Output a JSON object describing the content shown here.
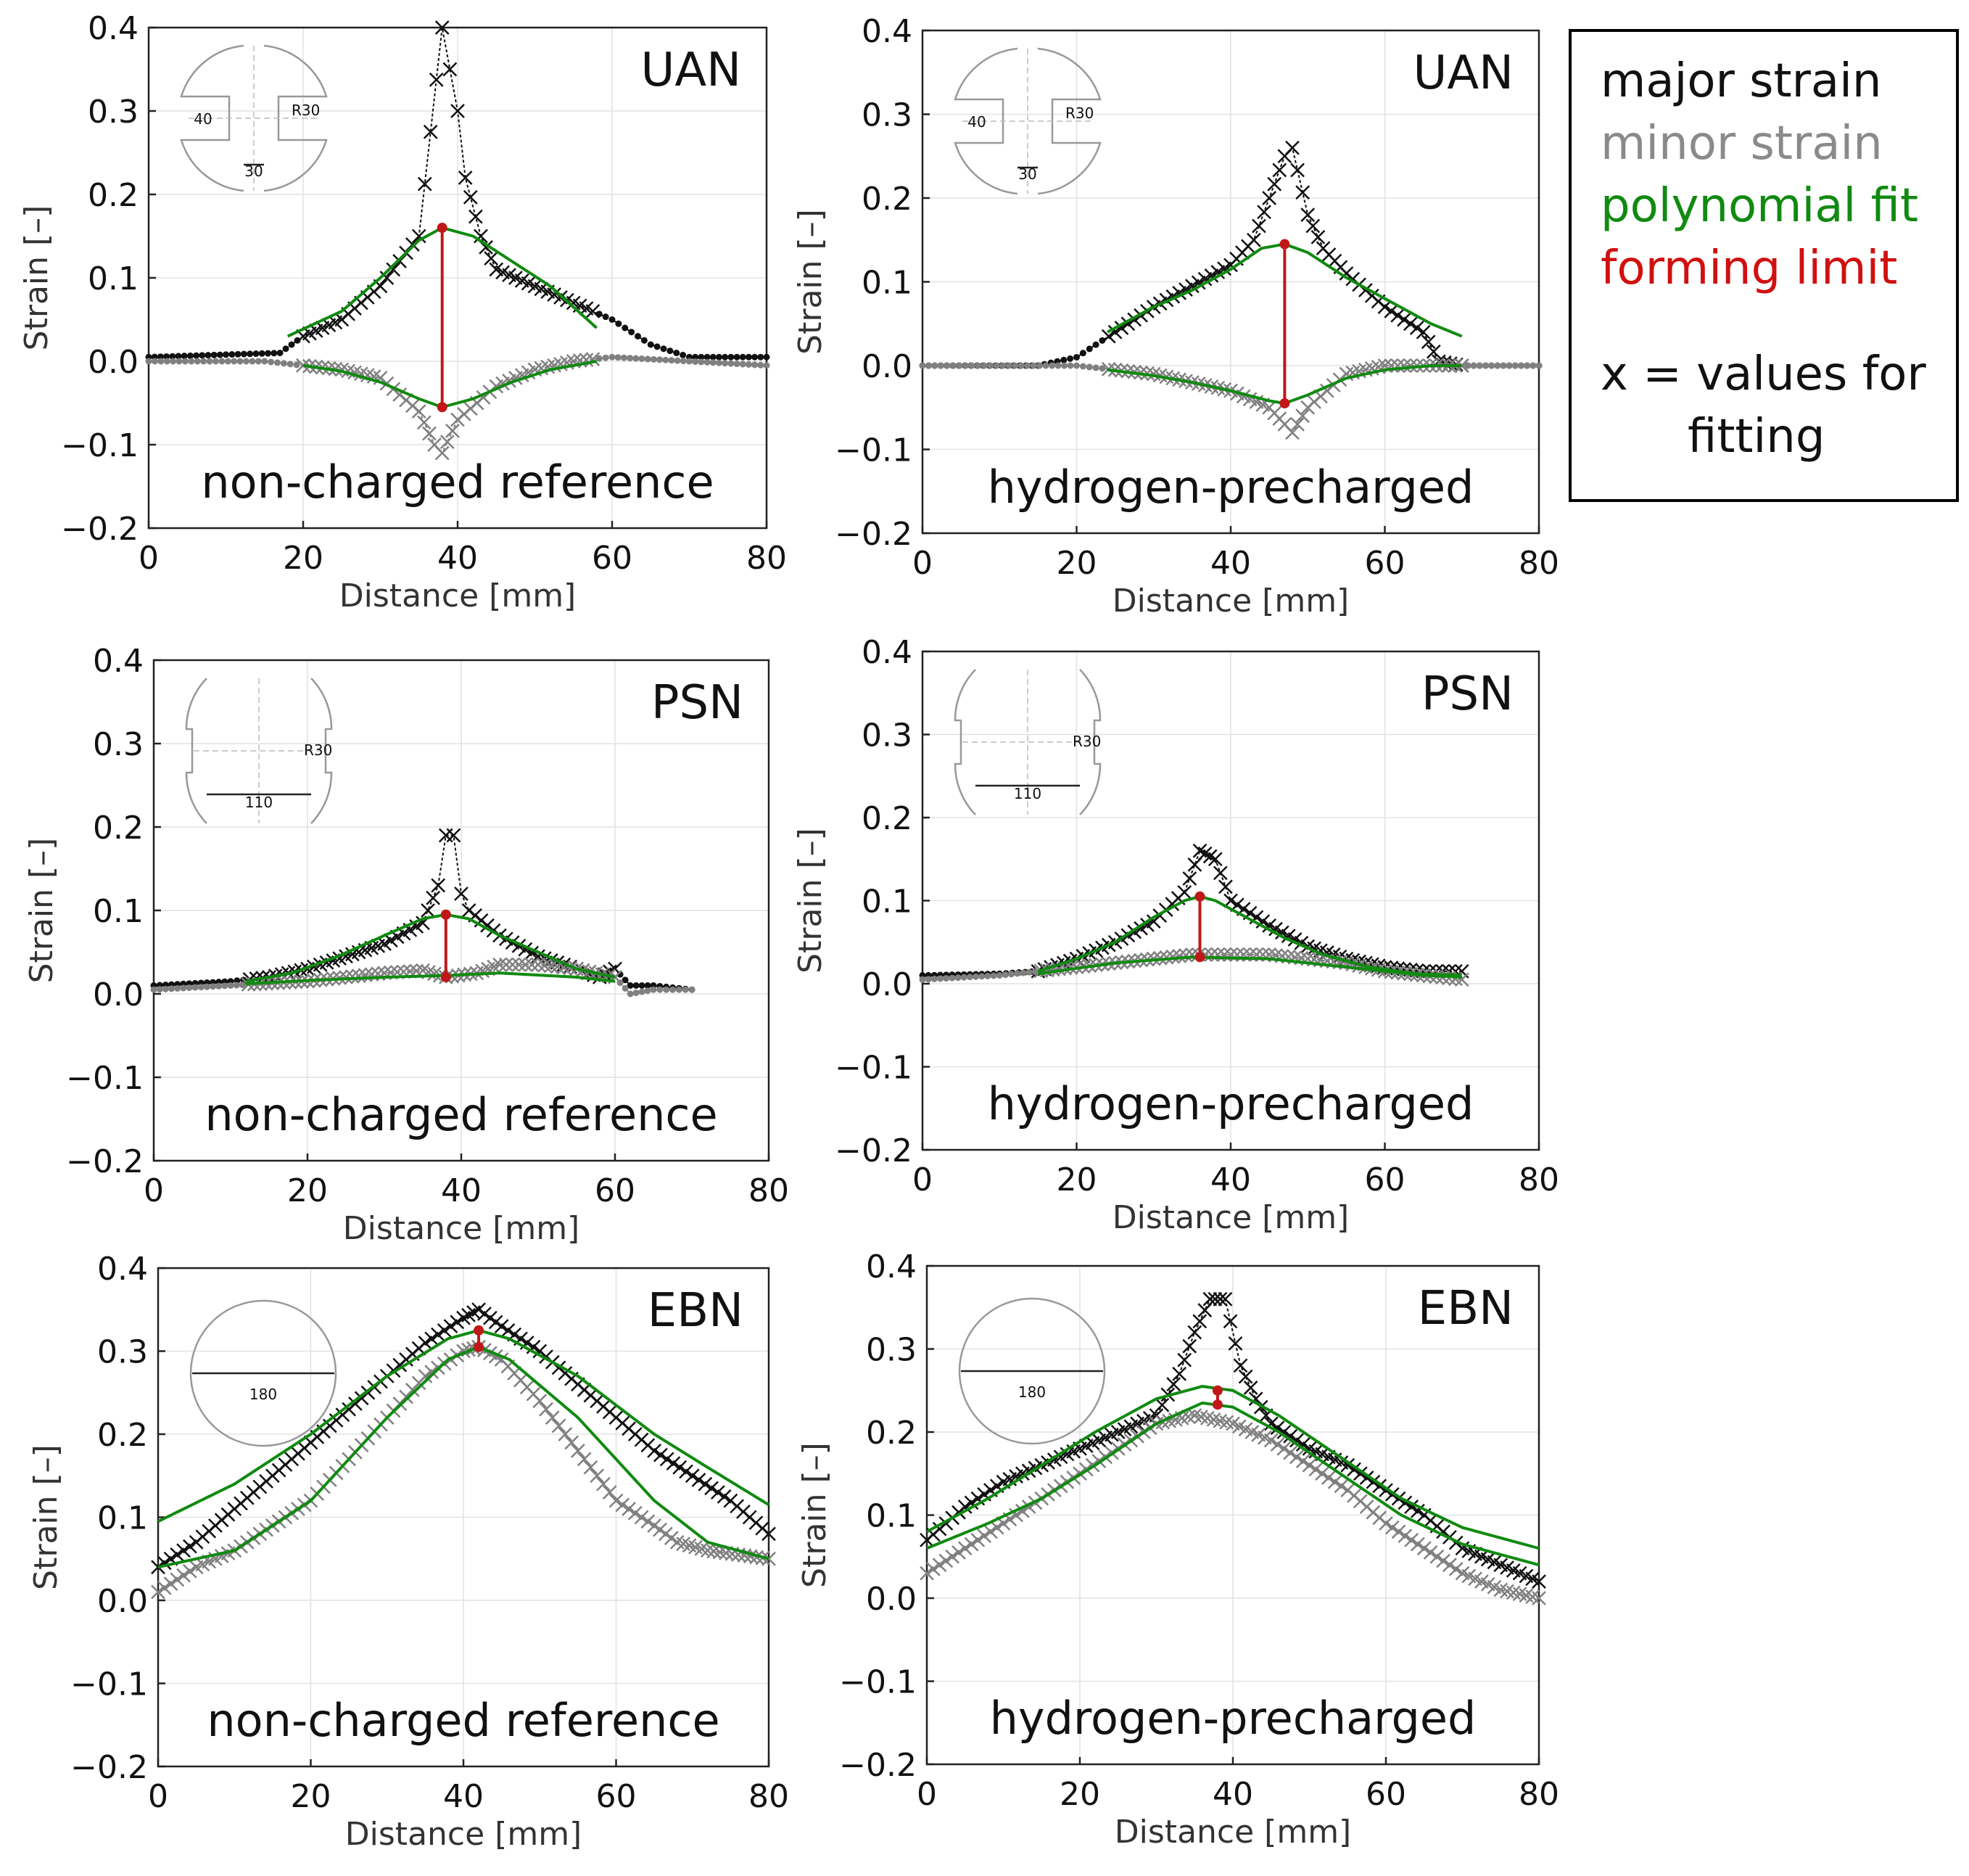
{
  "legend": {
    "major": "major strain",
    "minor": "minor strain",
    "fit": "polynomial fit",
    "limit": "forming limit",
    "note1": "x = values for",
    "note2": "fitting"
  },
  "colors": {
    "major": "#111111",
    "minor": "#808080",
    "fit": "#108a10",
    "limit": "#c01818",
    "grid": "#e2e2e2"
  },
  "chart_data": [
    {
      "type": "line",
      "test": "UAN",
      "condition": "non-charged reference",
      "xlabel": "Distance [mm]",
      "ylabel": "Strain [–]",
      "xlim": [
        0,
        80
      ],
      "ylim": [
        -0.2,
        0.4
      ],
      "xticks": [
        "0",
        "20",
        "40",
        "60",
        "80"
      ],
      "yticks": [
        "0.4",
        "0.3",
        "0.2",
        "0.1",
        "0.0",
        "−0.1",
        "−0.2"
      ],
      "specimen": {
        "shape": "notched",
        "labels": [
          "40",
          "R30",
          "30"
        ]
      },
      "major_strain": {
        "x": [
          0,
          10,
          17,
          20,
          25,
          30,
          35,
          38,
          39,
          40,
          41,
          43,
          45,
          50,
          55,
          60,
          65,
          70,
          80
        ],
        "y": [
          0.005,
          0.008,
          0.01,
          0.03,
          0.05,
          0.09,
          0.15,
          0.4,
          0.35,
          0.3,
          0.22,
          0.15,
          0.11,
          0.09,
          0.07,
          0.05,
          0.02,
          0.005,
          0.005
        ]
      },
      "minor_strain": {
        "x": [
          0,
          15,
          20,
          25,
          30,
          35,
          37,
          38,
          40,
          45,
          50,
          55,
          60,
          70,
          80
        ],
        "y": [
          0.0,
          0.0,
          -0.005,
          -0.01,
          -0.02,
          -0.06,
          -0.1,
          -0.11,
          -0.07,
          -0.03,
          -0.01,
          0.0,
          0.005,
          0.0,
          -0.005
        ]
      },
      "major_fit": {
        "x": [
          18,
          25,
          30,
          35,
          38,
          42,
          47,
          52,
          58
        ],
        "y": [
          0.03,
          0.06,
          0.1,
          0.145,
          0.16,
          0.15,
          0.12,
          0.09,
          0.04
        ]
      },
      "minor_fit": {
        "x": [
          20,
          25,
          30,
          35,
          38,
          42,
          47,
          52,
          58
        ],
        "y": [
          -0.005,
          -0.012,
          -0.025,
          -0.045,
          -0.055,
          -0.045,
          -0.025,
          -0.01,
          0.0
        ]
      },
      "forming_limit": {
        "x": 38,
        "major": 0.16,
        "minor": -0.055
      },
      "fit_range": [
        20,
        58
      ]
    },
    {
      "type": "line",
      "test": "UAN",
      "condition": "hydrogen-precharged",
      "xlabel": "Distance [mm]",
      "ylabel": "Strain [–]",
      "xlim": [
        0,
        80
      ],
      "ylim": [
        -0.2,
        0.4
      ],
      "xticks": [
        "0",
        "20",
        "40",
        "60",
        "80"
      ],
      "yticks": [
        "0.4",
        "0.3",
        "0.2",
        "0.1",
        "0.0",
        "−0.1",
        "−0.2"
      ],
      "specimen": {
        "shape": "notched",
        "labels": [
          "40",
          "R30",
          "30"
        ]
      },
      "major_strain": {
        "x": [
          0,
          15,
          20,
          25,
          30,
          35,
          40,
          43,
          45,
          47,
          48,
          50,
          52,
          55,
          60,
          65,
          67,
          70,
          80
        ],
        "y": [
          0.0,
          0.0,
          0.01,
          0.04,
          0.07,
          0.095,
          0.12,
          0.15,
          0.2,
          0.25,
          0.26,
          0.18,
          0.14,
          0.11,
          0.07,
          0.04,
          0.005,
          0.0,
          0.0
        ]
      },
      "minor_strain": {
        "x": [
          0,
          20,
          25,
          30,
          35,
          40,
          45,
          47,
          48,
          50,
          55,
          60,
          65,
          70,
          80
        ],
        "y": [
          0.0,
          0.0,
          -0.005,
          -0.01,
          -0.02,
          -0.03,
          -0.05,
          -0.07,
          -0.08,
          -0.05,
          -0.01,
          0.0,
          0.0,
          0.0,
          0.0
        ]
      },
      "major_fit": {
        "x": [
          24,
          30,
          35,
          40,
          44,
          47,
          50,
          55,
          60,
          66,
          70
        ],
        "y": [
          0.04,
          0.07,
          0.09,
          0.115,
          0.14,
          0.145,
          0.135,
          0.105,
          0.08,
          0.05,
          0.035
        ]
      },
      "minor_fit": {
        "x": [
          24,
          30,
          35,
          40,
          45,
          47,
          50,
          55,
          60,
          66,
          70
        ],
        "y": [
          -0.005,
          -0.012,
          -0.02,
          -0.03,
          -0.042,
          -0.045,
          -0.035,
          -0.015,
          -0.005,
          0.0,
          0.0
        ]
      },
      "forming_limit": {
        "x": 47,
        "major": 0.145,
        "minor": -0.045
      },
      "fit_range": [
        24,
        70
      ]
    },
    {
      "type": "line",
      "test": "PSN",
      "condition": "non-charged reference",
      "xlabel": "Distance [mm]",
      "ylabel": "Strain [–]",
      "xlim": [
        0,
        80
      ],
      "ylim": [
        -0.2,
        0.4
      ],
      "xticks": [
        "0",
        "20",
        "40",
        "60",
        "80"
      ],
      "yticks": [
        "0.4",
        "0.3",
        "0.2",
        "0.1",
        "0.0",
        "−0.1",
        "−0.2"
      ],
      "specimen": {
        "shape": "notched",
        "labels": [
          "R30",
          "110"
        ]
      },
      "major_strain": {
        "x": [
          0,
          10,
          15,
          20,
          25,
          30,
          35,
          37,
          38,
          39,
          40,
          41,
          45,
          50,
          55,
          58,
          60,
          62,
          65,
          70
        ],
        "y": [
          0.01,
          0.015,
          0.02,
          0.03,
          0.045,
          0.06,
          0.085,
          0.13,
          0.19,
          0.19,
          0.12,
          0.1,
          0.07,
          0.045,
          0.03,
          0.02,
          0.03,
          0.01,
          0.01,
          0.005
        ]
      },
      "minor_strain": {
        "x": [
          0,
          10,
          20,
          25,
          30,
          35,
          38,
          42,
          45,
          50,
          55,
          60,
          62,
          65,
          70
        ],
        "y": [
          0.005,
          0.01,
          0.015,
          0.02,
          0.025,
          0.028,
          0.02,
          0.025,
          0.035,
          0.035,
          0.03,
          0.02,
          0.0,
          0.005,
          0.005
        ]
      },
      "major_fit": {
        "x": [
          12,
          18,
          24,
          30,
          35,
          38,
          41,
          45,
          50,
          55,
          60
        ],
        "y": [
          0.015,
          0.025,
          0.045,
          0.07,
          0.09,
          0.095,
          0.09,
          0.07,
          0.05,
          0.03,
          0.02
        ]
      },
      "minor_fit": {
        "x": [
          12,
          20,
          30,
          38,
          45,
          55,
          60
        ],
        "y": [
          0.012,
          0.016,
          0.02,
          0.022,
          0.025,
          0.02,
          0.015
        ]
      },
      "forming_limit": {
        "x": 38,
        "major": 0.095,
        "minor": 0.02
      },
      "fit_range": [
        12,
        60
      ]
    },
    {
      "type": "line",
      "test": "PSN",
      "condition": "hydrogen-precharged",
      "xlabel": "Distance [mm]",
      "ylabel": "Strain [–]",
      "xlim": [
        0,
        80
      ],
      "ylim": [
        -0.2,
        0.4
      ],
      "xticks": [
        "0",
        "20",
        "40",
        "60",
        "80"
      ],
      "yticks": [
        "0.4",
        "0.3",
        "0.2",
        "0.1",
        "0.0",
        "−0.1",
        "−0.2"
      ],
      "specimen": {
        "shape": "notched",
        "labels": [
          "R30",
          "110"
        ]
      },
      "major_strain": {
        "x": [
          0,
          10,
          15,
          20,
          25,
          30,
          34,
          36,
          38,
          40,
          45,
          50,
          55,
          60,
          65,
          70
        ],
        "y": [
          0.01,
          0.012,
          0.015,
          0.03,
          0.05,
          0.075,
          0.11,
          0.16,
          0.15,
          0.1,
          0.07,
          0.045,
          0.03,
          0.02,
          0.015,
          0.015
        ]
      },
      "minor_strain": {
        "x": [
          0,
          10,
          20,
          25,
          30,
          35,
          40,
          45,
          50,
          55,
          60,
          65,
          70
        ],
        "y": [
          0.005,
          0.01,
          0.02,
          0.025,
          0.03,
          0.035,
          0.035,
          0.035,
          0.03,
          0.025,
          0.015,
          0.01,
          0.005
        ]
      },
      "major_fit": {
        "x": [
          15,
          20,
          25,
          30,
          34,
          36,
          38,
          42,
          47,
          52,
          58,
          64,
          70
        ],
        "y": [
          0.015,
          0.03,
          0.05,
          0.08,
          0.1,
          0.105,
          0.1,
          0.08,
          0.055,
          0.035,
          0.02,
          0.012,
          0.01
        ]
      },
      "minor_fit": {
        "x": [
          15,
          25,
          35,
          45,
          55,
          65,
          70
        ],
        "y": [
          0.012,
          0.025,
          0.032,
          0.03,
          0.02,
          0.01,
          0.008
        ]
      },
      "forming_limit": {
        "x": 36,
        "major": 0.105,
        "minor": 0.032
      },
      "fit_range": [
        15,
        70
      ]
    },
    {
      "type": "line",
      "test": "EBN",
      "condition": "non-charged reference",
      "xlabel": "Distance [mm]",
      "ylabel": "Strain [–]",
      "xlim": [
        0,
        80
      ],
      "ylim": [
        -0.2,
        0.4
      ],
      "xticks": [
        "0",
        "20",
        "40",
        "60",
        "80"
      ],
      "yticks": [
        "0.4",
        "0.3",
        "0.2",
        "0.1",
        "0.0",
        "−0.1",
        "−0.2"
      ],
      "specimen": {
        "shape": "circle",
        "labels": [
          "180"
        ]
      },
      "major_strain": {
        "x": [
          0,
          5,
          10,
          15,
          20,
          25,
          30,
          35,
          40,
          42,
          45,
          50,
          55,
          60,
          65,
          70,
          75,
          80
        ],
        "y": [
          0.04,
          0.07,
          0.11,
          0.15,
          0.19,
          0.23,
          0.27,
          0.31,
          0.34,
          0.35,
          0.33,
          0.3,
          0.26,
          0.22,
          0.18,
          0.15,
          0.12,
          0.08
        ]
      },
      "minor_strain": {
        "x": [
          0,
          5,
          10,
          15,
          20,
          25,
          30,
          35,
          40,
          42,
          45,
          50,
          55,
          60,
          65,
          68,
          72,
          80
        ],
        "y": [
          0.01,
          0.04,
          0.06,
          0.09,
          0.12,
          0.17,
          0.22,
          0.27,
          0.3,
          0.305,
          0.29,
          0.24,
          0.18,
          0.12,
          0.09,
          0.07,
          0.06,
          0.05
        ]
      },
      "major_fit": {
        "x": [
          0,
          10,
          20,
          30,
          38,
          42,
          46,
          55,
          65,
          72,
          80
        ],
        "y": [
          0.095,
          0.14,
          0.2,
          0.27,
          0.315,
          0.325,
          0.315,
          0.27,
          0.2,
          0.16,
          0.115
        ]
      },
      "minor_fit": {
        "x": [
          0,
          10,
          20,
          30,
          38,
          42,
          46,
          55,
          65,
          72,
          80
        ],
        "y": [
          0.04,
          0.06,
          0.12,
          0.22,
          0.29,
          0.305,
          0.29,
          0.22,
          0.12,
          0.07,
          0.05
        ]
      },
      "forming_limit": {
        "x": 42,
        "major": 0.325,
        "minor": 0.305
      },
      "fit_range": [
        0,
        80
      ]
    },
    {
      "type": "line",
      "test": "EBN",
      "condition": "hydrogen-precharged",
      "xlabel": "Distance [mm]",
      "ylabel": "Strain [–]",
      "xlim": [
        0,
        80
      ],
      "ylim": [
        -0.2,
        0.4
      ],
      "xticks": [
        "0",
        "20",
        "40",
        "60",
        "80"
      ],
      "yticks": [
        "0.4",
        "0.3",
        "0.2",
        "0.1",
        "0.0",
        "−0.1",
        "−0.2"
      ],
      "specimen": {
        "shape": "circle",
        "labels": [
          "180"
        ]
      },
      "major_strain": {
        "x": [
          0,
          5,
          10,
          15,
          20,
          25,
          30,
          33,
          35,
          37,
          39,
          41,
          43,
          45,
          50,
          55,
          60,
          65,
          70,
          75,
          80
        ],
        "y": [
          0.07,
          0.11,
          0.14,
          0.16,
          0.18,
          0.2,
          0.22,
          0.27,
          0.32,
          0.36,
          0.36,
          0.28,
          0.24,
          0.21,
          0.18,
          0.16,
          0.13,
          0.1,
          0.06,
          0.04,
          0.02
        ]
      },
      "minor_strain": {
        "x": [
          0,
          5,
          10,
          15,
          20,
          25,
          30,
          35,
          40,
          45,
          50,
          55,
          60,
          65,
          70,
          75,
          80
        ],
        "y": [
          0.03,
          0.06,
          0.09,
          0.12,
          0.15,
          0.18,
          0.21,
          0.22,
          0.21,
          0.19,
          0.16,
          0.13,
          0.09,
          0.06,
          0.03,
          0.01,
          0.0
        ]
      },
      "major_fit": {
        "x": [
          0,
          8,
          15,
          22,
          30,
          36,
          40,
          46,
          54,
          62,
          70,
          80
        ],
        "y": [
          0.08,
          0.12,
          0.16,
          0.2,
          0.24,
          0.255,
          0.25,
          0.22,
          0.17,
          0.12,
          0.085,
          0.06
        ]
      },
      "minor_fit": {
        "x": [
          0,
          8,
          15,
          22,
          30,
          36,
          40,
          46,
          54,
          62,
          70,
          80
        ],
        "y": [
          0.06,
          0.09,
          0.12,
          0.16,
          0.21,
          0.235,
          0.23,
          0.2,
          0.15,
          0.1,
          0.065,
          0.04
        ]
      },
      "forming_limit": {
        "x": 38,
        "major": 0.25,
        "minor": 0.233
      },
      "fit_range": [
        0,
        80
      ]
    }
  ]
}
